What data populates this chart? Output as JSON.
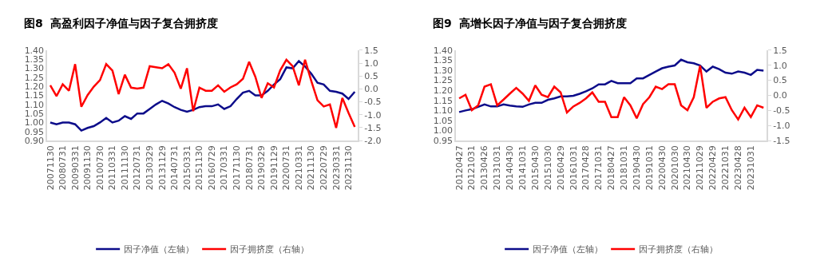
{
  "chart_data": [
    {
      "type": "line",
      "title": "图8  高盈利因子净值与因子复合拥挤度",
      "legend": "bottom",
      "marker": "none",
      "line_style": "solid",
      "categories": [
        "20071130",
        null,
        "20080731",
        null,
        "20090331",
        null,
        "20091130",
        null,
        "20100730",
        null,
        "20110331",
        null,
        "20111130",
        null,
        "20120731",
        null,
        "20130329",
        null,
        "20131129",
        null,
        "20140731",
        null,
        "20150331",
        null,
        "20151130",
        null,
        "20160729",
        null,
        "20170331",
        null,
        "20171130",
        null,
        "20180731",
        null,
        "20190329",
        null,
        "20191129",
        null,
        "20200731",
        null,
        "20210331",
        null,
        "20211130",
        null,
        "20220729",
        null,
        "20230331",
        null,
        "20231130",
        null
      ],
      "ylim": [
        0.9,
        1.4
      ],
      "yticks": [
        {
          "value": 0.9,
          "label": "0.90"
        },
        0.95,
        {
          "value": 1.0,
          "label": "1.00"
        },
        1.05,
        {
          "value": 1.1,
          "label": "1.10"
        },
        1.15,
        {
          "value": 1.2,
          "label": "1.20"
        },
        1.25,
        {
          "value": 1.3,
          "label": "1.30"
        },
        1.35,
        {
          "value": 1.4,
          "label": "1.40"
        }
      ],
      "y2lim": [
        -2.0,
        1.5
      ],
      "y2ticks": [
        {
          "value": -2.0,
          "label": "-2.0"
        },
        -1.5,
        {
          "value": -1.0,
          "label": "-1.0"
        },
        -0.5,
        {
          "value": 0.0,
          "label": "0.0"
        },
        0.5,
        {
          "value": 1.0,
          "label": "1.0"
        },
        1.5
      ],
      "series": [
        {
          "name": "因子净值（左轴）",
          "color": "#0c0c8a",
          "values": [
            1.0,
            0.99,
            1.0,
            1.0,
            0.99,
            0.955,
            0.97,
            0.98,
            1.0,
            1.025,
            1.0,
            1.01,
            1.035,
            1.02,
            1.05,
            1.05,
            1.075,
            1.1,
            1.12,
            1.105,
            1.085,
            1.07,
            1.06,
            1.07,
            1.085,
            1.09,
            1.09,
            1.1,
            1.075,
            1.09,
            1.13,
            1.165,
            1.175,
            1.15,
            1.15,
            1.175,
            1.21,
            1.24,
            1.305,
            1.3,
            1.34,
            1.31,
            1.27,
            1.22,
            1.21,
            1.175,
            1.17,
            1.16,
            1.13,
            1.17
          ]
        },
        {
          "name": "因子拥挤度（右轴）",
          "color": "#ff0000",
          "axis": "y2",
          "values": [
            0.14,
            -0.28,
            0.18,
            -0.07,
            0.96,
            -0.69,
            -0.24,
            0.09,
            0.34,
            0.96,
            0.71,
            -0.2,
            0.55,
            0.05,
            0.01,
            0.05,
            0.88,
            0.84,
            0.8,
            0.96,
            0.63,
            0.01,
            0.8,
            -0.86,
            0.05,
            -0.07,
            -0.07,
            0.14,
            -0.11,
            0.06,
            0.18,
            0.39,
            1.05,
            0.47,
            -0.35,
            0.22,
            0.06,
            0.72,
            1.13,
            0.88,
            0.14,
            1.13,
            0.31,
            -0.44,
            -0.68,
            -0.6,
            -1.51,
            -0.35,
            -0.93,
            -1.47
          ]
        }
      ]
    },
    {
      "type": "line",
      "title": "图9  高增长因子净值与因子复合拥挤度",
      "legend": "bottom",
      "marker": "none",
      "line_style": "solid",
      "categories": [
        "20120427",
        null,
        "20121031",
        null,
        "20130426",
        null,
        "20131031",
        null,
        "20140430",
        null,
        "20141031",
        null,
        "20150430",
        null,
        "20151030",
        null,
        "20160429",
        null,
        "20161031",
        null,
        "20170428",
        null,
        "20171031",
        null,
        "20180427",
        null,
        "20181031",
        null,
        "20190430",
        null,
        "20191031",
        null,
        "20200430",
        null,
        "20201030",
        null,
        "20210430",
        null,
        "20211029",
        null,
        "20220429",
        null,
        "20221031",
        null,
        "20230428",
        null,
        "20231031",
        null,
        null
      ],
      "ylim": [
        0.95,
        1.4
      ],
      "yticks": [
        0.95,
        {
          "value": 1.0,
          "label": "1.00"
        },
        1.05,
        {
          "value": 1.1,
          "label": "1.10"
        },
        1.15,
        {
          "value": 1.2,
          "label": "1.20"
        },
        1.25,
        {
          "value": 1.3,
          "label": "1.30"
        },
        1.35,
        {
          "value": 1.4,
          "label": "1.40"
        }
      ],
      "y2lim": [
        -1.5,
        1.5
      ],
      "y2ticks": [
        -1.5,
        {
          "value": -1.0,
          "label": "-1.0"
        },
        -0.5,
        {
          "value": 0.0,
          "label": "0.0"
        },
        0.5,
        {
          "value": 1.0,
          "label": "1.0"
        },
        1.5
      ],
      "series": [
        {
          "name": "因子净值（左轴）",
          "color": "#0c0c8a",
          "values": [
            1.092,
            1.1,
            1.106,
            1.118,
            1.13,
            1.12,
            1.12,
            1.13,
            1.124,
            1.12,
            1.118,
            1.13,
            1.138,
            1.138,
            1.153,
            1.16,
            1.17,
            1.17,
            1.173,
            1.183,
            1.195,
            1.21,
            1.23,
            1.23,
            1.247,
            1.236,
            1.236,
            1.236,
            1.26,
            1.26,
            1.277,
            1.294,
            1.31,
            1.318,
            1.324,
            1.353,
            1.34,
            1.335,
            1.324,
            1.294,
            1.318,
            1.306,
            1.288,
            1.283,
            1.294,
            1.288,
            1.277,
            1.302,
            1.298
          ]
        },
        {
          "name": "因子拥挤度（右轴）",
          "color": "#ff0000",
          "axis": "y2",
          "values": [
            -0.1,
            0.02,
            -0.49,
            -0.33,
            0.29,
            0.37,
            -0.33,
            -0.14,
            0.06,
            0.25,
            0.06,
            -0.18,
            0.33,
            0.02,
            -0.06,
            0.29,
            0.1,
            -0.57,
            -0.37,
            -0.25,
            -0.1,
            0.1,
            -0.21,
            -0.21,
            -0.72,
            -0.72,
            -0.06,
            -0.33,
            -0.76,
            -0.29,
            -0.06,
            0.29,
            0.21,
            0.37,
            0.37,
            -0.33,
            -0.49,
            -0.06,
            0.99,
            -0.41,
            -0.21,
            -0.1,
            -0.06,
            -0.49,
            -0.8,
            -0.41,
            -0.72,
            -0.33,
            -0.41
          ]
        }
      ]
    }
  ]
}
